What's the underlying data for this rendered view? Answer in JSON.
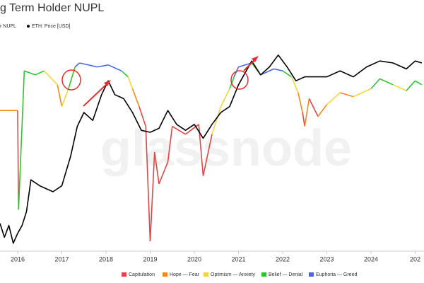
{
  "chart_data": {
    "type": "line",
    "title": "g Term Holder NUPL",
    "watermark": "glassnode",
    "xlim": [
      2015.6,
      2025.2
    ],
    "ylim": [
      0,
      100
    ],
    "xticks": [
      2016,
      2017,
      2018,
      2019,
      2020,
      2021,
      2022,
      2023,
      2024,
      {
        "value": 2025,
        "label": "202"
      }
    ],
    "zones": [
      {
        "name": "Capitulation",
        "color": "#e04646"
      },
      {
        "name": "Hope — Fear",
        "color": "#f08a1c"
      },
      {
        "name": "Optimism — Anxiety",
        "color": "#f2d83c"
      },
      {
        "name": "Belief — Denial",
        "color": "#2fc42f"
      },
      {
        "name": "Euphoria — Greed",
        "color": "#4a67e0"
      }
    ],
    "series": [
      {
        "name": "r NUPL",
        "color": "#f08a1c",
        "x": [
          2015.6,
          2016.0,
          2016.02,
          2016.15,
          2016.4,
          2016.6,
          2016.9,
          2017.0,
          2017.15,
          2017.3,
          2017.4,
          2017.8,
          2018.05,
          2018.35,
          2018.5,
          2018.6,
          2018.75,
          2018.9,
          2019.0,
          2019.1,
          2019.2,
          2019.4,
          2019.5,
          2019.8,
          2020.1,
          2020.2,
          2020.4,
          2020.6,
          2020.8,
          2020.9,
          2021.0,
          2021.3,
          2021.5,
          2021.8,
          2022.0,
          2022.2,
          2022.35,
          2022.45,
          2022.5,
          2022.6,
          2022.8,
          2023.0,
          2023.3,
          2023.6,
          2024.0,
          2024.2,
          2024.5,
          2024.8,
          2025.0,
          2025.15
        ],
        "values": [
          71,
          71,
          21,
          91,
          89,
          91,
          84,
          73,
          82,
          93,
          95,
          93,
          94,
          91,
          88,
          82,
          73,
          63,
          5,
          50,
          34,
          45,
          63,
          59,
          64,
          38,
          59,
          73,
          82,
          88,
          93,
          95,
          89,
          92,
          91,
          88,
          80,
          70,
          63,
          77,
          68,
          74,
          80,
          78,
          82,
          87,
          84,
          81,
          86,
          84
        ],
        "point_zones": [
          1,
          1,
          0,
          3,
          3,
          3,
          2,
          1,
          2,
          3,
          4,
          4,
          4,
          4,
          3,
          2,
          1,
          0,
          0,
          0,
          0,
          0,
          0,
          0,
          0,
          0,
          0,
          2,
          2,
          3,
          4,
          4,
          3,
          4,
          4,
          3,
          2,
          1,
          0,
          1,
          0,
          1,
          2,
          1,
          2,
          3,
          3,
          2,
          3,
          3
        ]
      },
      {
        "name": "ETH: Price [USD]",
        "color": "#000000",
        "x": [
          2015.6,
          2015.7,
          2015.8,
          2015.9,
          2016.0,
          2016.1,
          2016.2,
          2016.3,
          2016.5,
          2016.8,
          2017.0,
          2017.2,
          2017.35,
          2017.5,
          2017.7,
          2017.9,
          2018.05,
          2018.2,
          2018.4,
          2018.6,
          2018.8,
          2019.0,
          2019.2,
          2019.4,
          2019.6,
          2019.8,
          2020.0,
          2020.2,
          2020.4,
          2020.6,
          2020.8,
          2021.0,
          2021.3,
          2021.5,
          2021.7,
          2021.9,
          2022.1,
          2022.3,
          2022.5,
          2022.8,
          2023.0,
          2023.3,
          2023.6,
          2023.9,
          2024.2,
          2024.5,
          2024.8,
          2025.0,
          2025.15
        ],
        "values": [
          14,
          7,
          13,
          4,
          9,
          13,
          20,
          36,
          33,
          30,
          33,
          48,
          63,
          70,
          66,
          79,
          86,
          79,
          77,
          70,
          61,
          60,
          62,
          71,
          64,
          61,
          64,
          57,
          64,
          70,
          73,
          84,
          96,
          89,
          93,
          99,
          93,
          86,
          88,
          88,
          88,
          91,
          88,
          93,
          96,
          95,
          92,
          96,
          95
        ]
      }
    ]
  }
}
